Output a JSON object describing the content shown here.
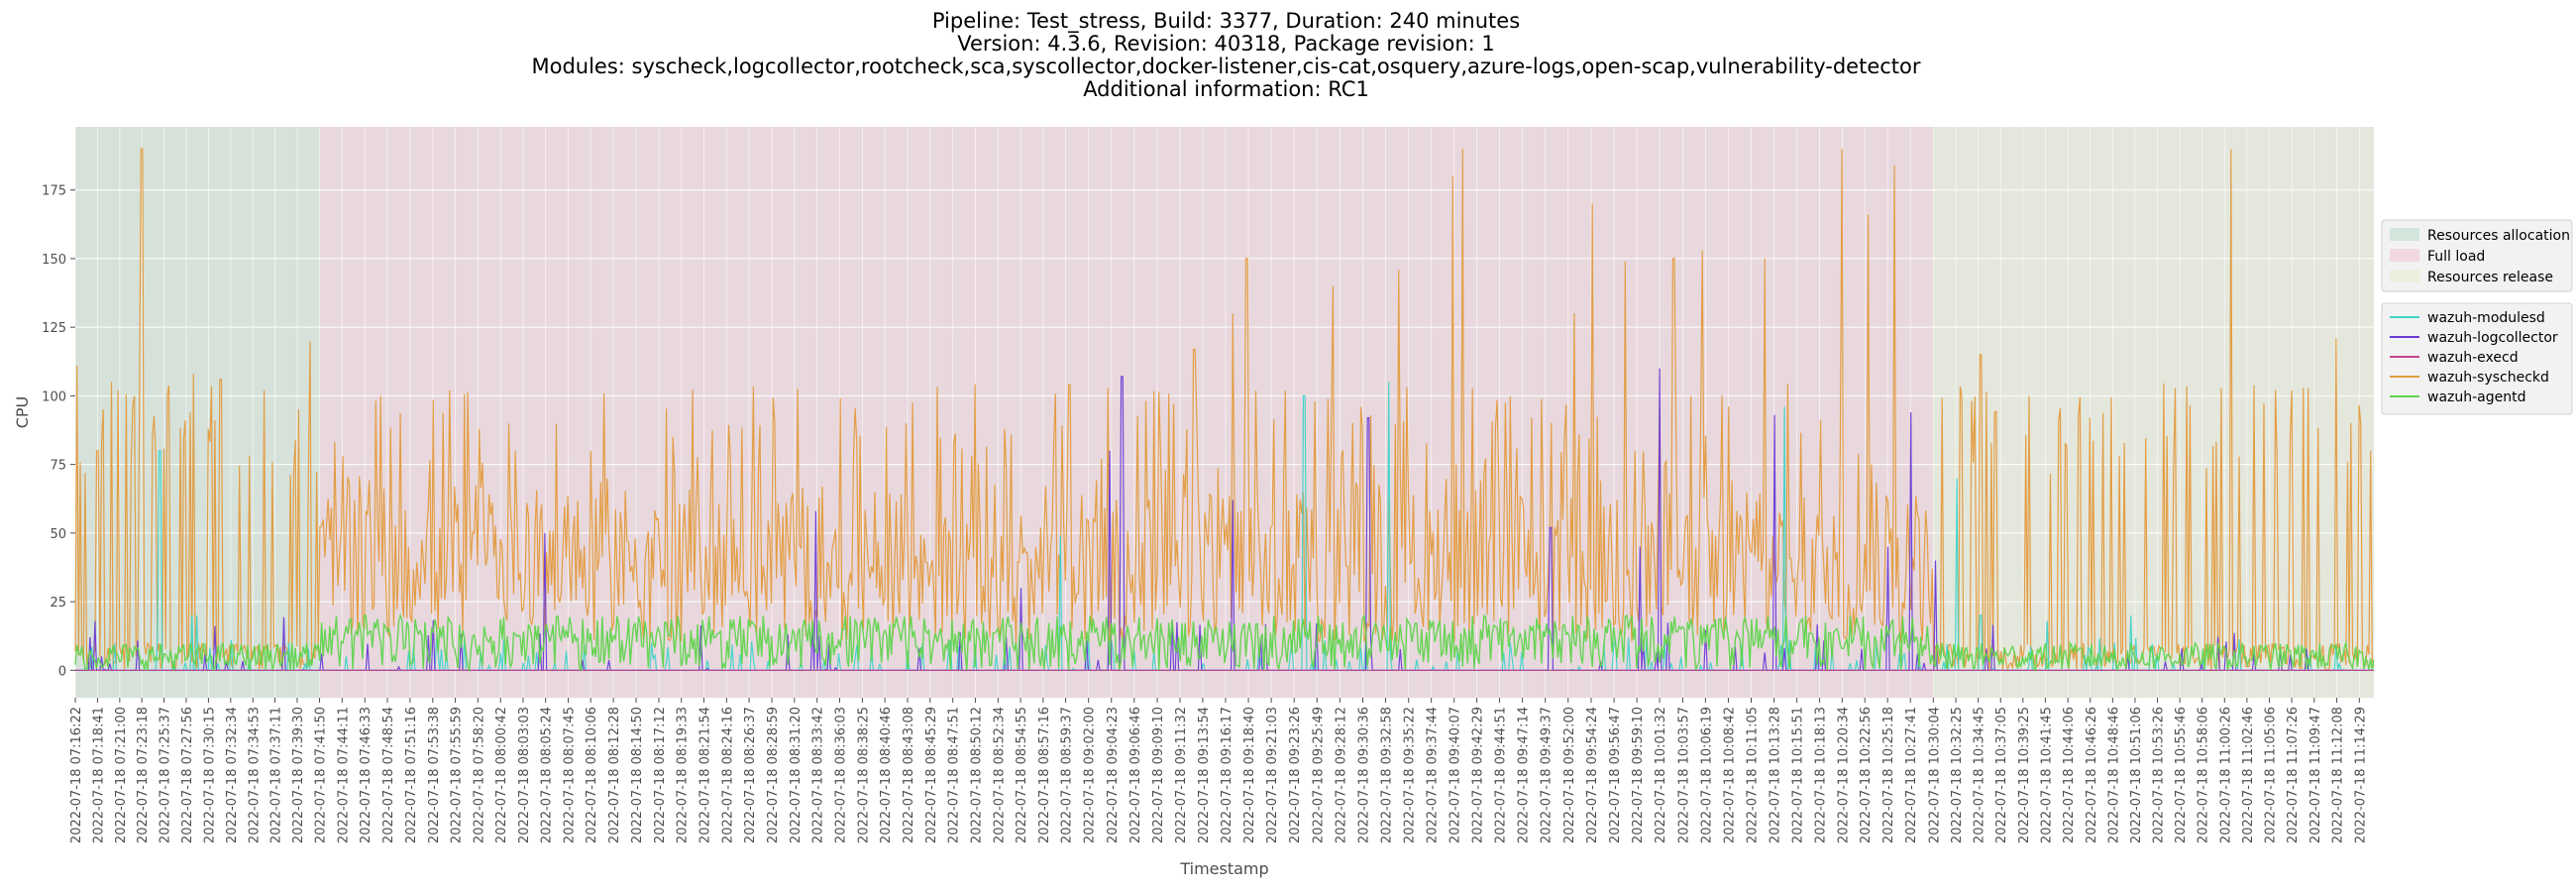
{
  "title_lines": [
    "Pipeline: Test_stress, Build: 3377, Duration: 240 minutes",
    "Version: 4.3.6, Revision: 40318, Package revision: 1",
    "Modules: syscheck,logcollector,rootcheck,sca,syscollector,docker-listener,cis-cat,osquery,azure-logs,open-scap,vulnerability-detector",
    "Additional information: RC1"
  ],
  "chart_data": {
    "type": "line",
    "xlabel": "Timestamp",
    "ylabel": "CPU",
    "ylim": [
      -10,
      198
    ],
    "yticks": [
      0,
      25,
      50,
      75,
      100,
      125,
      150,
      175
    ],
    "grid": true,
    "legend_position": "right",
    "x_start": "2022-07-18 07:16:22",
    "x_end": "2022-07-18 11:16:00",
    "xticks": [
      "2022-07-18 07:16:22",
      "2022-07-18 07:18:41",
      "2022-07-18 07:21:00",
      "2022-07-18 07:23:18",
      "2022-07-18 07:25:37",
      "2022-07-18 07:27:56",
      "2022-07-18 07:30:15",
      "2022-07-18 07:32:34",
      "2022-07-18 07:34:53",
      "2022-07-18 07:37:11",
      "2022-07-18 07:39:30",
      "2022-07-18 07:41:50",
      "2022-07-18 07:44:11",
      "2022-07-18 07:46:33",
      "2022-07-18 07:48:54",
      "2022-07-18 07:51:16",
      "2022-07-18 07:53:38",
      "2022-07-18 07:55:59",
      "2022-07-18 07:58:20",
      "2022-07-18 08:00:42",
      "2022-07-18 08:03:03",
      "2022-07-18 08:05:24",
      "2022-07-18 08:07:45",
      "2022-07-18 08:10:06",
      "2022-07-18 08:12:28",
      "2022-07-18 08:14:50",
      "2022-07-18 08:17:12",
      "2022-07-18 08:19:33",
      "2022-07-18 08:21:54",
      "2022-07-18 08:24:16",
      "2022-07-18 08:26:37",
      "2022-07-18 08:28:59",
      "2022-07-18 08:31:20",
      "2022-07-18 08:33:42",
      "2022-07-18 08:36:03",
      "2022-07-18 08:38:25",
      "2022-07-18 08:40:46",
      "2022-07-18 08:43:08",
      "2022-07-18 08:45:29",
      "2022-07-18 08:47:51",
      "2022-07-18 08:50:12",
      "2022-07-18 08:52:34",
      "2022-07-18 08:54:55",
      "2022-07-18 08:57:16",
      "2022-07-18 08:59:37",
      "2022-07-18 09:02:00",
      "2022-07-18 09:04:23",
      "2022-07-18 09:06:46",
      "2022-07-18 09:09:10",
      "2022-07-18 09:11:32",
      "2022-07-18 09:13:54",
      "2022-07-18 09:16:17",
      "2022-07-18 09:18:40",
      "2022-07-18 09:21:03",
      "2022-07-18 09:23:26",
      "2022-07-18 09:25:49",
      "2022-07-18 09:28:12",
      "2022-07-18 09:30:36",
      "2022-07-18 09:32:58",
      "2022-07-18 09:35:22",
      "2022-07-18 09:37:44",
      "2022-07-18 09:40:07",
      "2022-07-18 09:42:29",
      "2022-07-18 09:44:51",
      "2022-07-18 09:47:14",
      "2022-07-18 09:49:37",
      "2022-07-18 09:52:00",
      "2022-07-18 09:54:24",
      "2022-07-18 09:56:47",
      "2022-07-18 09:59:10",
      "2022-07-18 10:01:32",
      "2022-07-18 10:03:57",
      "2022-07-18 10:06:19",
      "2022-07-18 10:08:42",
      "2022-07-18 10:11:05",
      "2022-07-18 10:13:28",
      "2022-07-18 10:15:51",
      "2022-07-18 10:18:13",
      "2022-07-18 10:20:34",
      "2022-07-18 10:22:56",
      "2022-07-18 10:25:18",
      "2022-07-18 10:27:41",
      "2022-07-18 10:30:04",
      "2022-07-18 10:32:25",
      "2022-07-18 10:34:45",
      "2022-07-18 10:37:05",
      "2022-07-18 10:39:25",
      "2022-07-18 10:41:45",
      "2022-07-18 10:44:06",
      "2022-07-18 10:46:26",
      "2022-07-18 10:48:46",
      "2022-07-18 10:51:06",
      "2022-07-18 10:53:26",
      "2022-07-18 10:55:46",
      "2022-07-18 10:58:06",
      "2022-07-18 11:00:26",
      "2022-07-18 11:02:46",
      "2022-07-18 11:05:06",
      "2022-07-18 11:07:26",
      "2022-07-18 11:09:47",
      "2022-07-18 11:12:08",
      "2022-07-18 11:14:29"
    ],
    "phases": [
      {
        "name": "Resources allocation",
        "start": "2022-07-18 07:16:22",
        "end": "2022-07-18 07:41:50",
        "color": "#b0d8c0"
      },
      {
        "name": "Full load",
        "start": "2022-07-18 07:41:50",
        "end": "2022-07-18 10:30:04",
        "color": "#f0b8c8"
      },
      {
        "name": "Resources release",
        "start": "2022-07-18 10:30:04",
        "end": "2022-07-18 11:16:00",
        "color": "#e2ecc6"
      }
    ],
    "series": [
      {
        "name": "wazuh-modulesd",
        "color": "#40d4c8",
        "baseline": 0,
        "peaks": [
          [
            "2022-07-18 07:25:10",
            80
          ],
          [
            "2022-07-18 07:28:30",
            20
          ],
          [
            "2022-07-18 07:29:00",
            20
          ],
          [
            "2022-07-18 08:59:00",
            49
          ],
          [
            "2022-07-18 09:24:30",
            100
          ],
          [
            "2022-07-18 09:33:20",
            105
          ],
          [
            "2022-07-18 10:14:30",
            96
          ],
          [
            "2022-07-18 10:32:30",
            70
          ],
          [
            "2022-07-18 10:35:00",
            20
          ],
          [
            "2022-07-18 10:42:00",
            18
          ],
          [
            "2022-07-18 10:50:40",
            20
          ]
        ]
      },
      {
        "name": "wazuh-logcollector",
        "color": "#6a3bd6",
        "baseline": 0,
        "peaks": [
          [
            "2022-07-18 08:05:20",
            50
          ],
          [
            "2022-07-18 08:33:30",
            58
          ],
          [
            "2022-07-18 08:55:00",
            30
          ],
          [
            "2022-07-18 09:05:30",
            107
          ],
          [
            "2022-07-18 09:04:10",
            80
          ],
          [
            "2022-07-18 09:31:10",
            92
          ],
          [
            "2022-07-18 09:17:00",
            62
          ],
          [
            "2022-07-18 09:50:10",
            52
          ],
          [
            "2022-07-18 10:01:30",
            110
          ],
          [
            "2022-07-18 10:13:30",
            93
          ],
          [
            "2022-07-18 10:25:20",
            45
          ],
          [
            "2022-07-18 10:27:40",
            94
          ],
          [
            "2022-07-18 10:30:20",
            40
          ],
          [
            "2022-07-18 09:59:30",
            45
          ]
        ]
      },
      {
        "name": "wazuh-execd",
        "color": "#c2468a",
        "baseline": 0,
        "peaks": []
      },
      {
        "name": "wazuh-syscheckd",
        "color": "#e39a3c",
        "baseline": 0,
        "peaks": [
          [
            "2022-07-18 07:16:30",
            111
          ],
          [
            "2022-07-18 07:18:40",
            80
          ],
          [
            "2022-07-18 07:20:10",
            105
          ],
          [
            "2022-07-18 07:22:30",
            100
          ],
          [
            "2022-07-18 07:23:18",
            190
          ],
          [
            "2022-07-18 07:26:00",
            100
          ],
          [
            "2022-07-18 07:28:40",
            108
          ],
          [
            "2022-07-18 07:31:30",
            106
          ],
          [
            "2022-07-18 07:36:00",
            102
          ],
          [
            "2022-07-18 07:40:50",
            120
          ],
          [
            "2022-07-18 07:58:30",
            88
          ],
          [
            "2022-07-18 08:01:30",
            90
          ],
          [
            "2022-07-18 08:10:10",
            80
          ],
          [
            "2022-07-18 08:43:00",
            90
          ],
          [
            "2022-07-18 09:00:00",
            104
          ],
          [
            "2022-07-18 09:13:00",
            117
          ],
          [
            "2022-07-18 09:17:00",
            130
          ],
          [
            "2022-07-18 09:18:30",
            150
          ],
          [
            "2022-07-18 09:27:30",
            140
          ],
          [
            "2022-07-18 09:34:20",
            146
          ],
          [
            "2022-07-18 09:40:00",
            180
          ],
          [
            "2022-07-18 09:41:00",
            190
          ],
          [
            "2022-07-18 09:52:40",
            130
          ],
          [
            "2022-07-18 09:54:30",
            170
          ],
          [
            "2022-07-18 09:58:00",
            149
          ],
          [
            "2022-07-18 10:03:00",
            150
          ],
          [
            "2022-07-18 10:06:00",
            153
          ],
          [
            "2022-07-18 10:12:30",
            150
          ],
          [
            "2022-07-18 10:20:30",
            190
          ],
          [
            "2022-07-18 10:23:20",
            166
          ],
          [
            "2022-07-18 10:26:00",
            184
          ],
          [
            "2022-07-18 10:35:00",
            115
          ],
          [
            "2022-07-18 10:40:00",
            100
          ],
          [
            "2022-07-18 11:01:10",
            190
          ],
          [
            "2022-07-18 11:07:30",
            102
          ],
          [
            "2022-07-18 11:12:00",
            121
          ],
          [
            "2022-07-18 11:15:40",
            80
          ]
        ]
      },
      {
        "name": "wazuh-agentd",
        "color": "#5fd44c",
        "baseline": 0,
        "peaks": []
      }
    ]
  }
}
